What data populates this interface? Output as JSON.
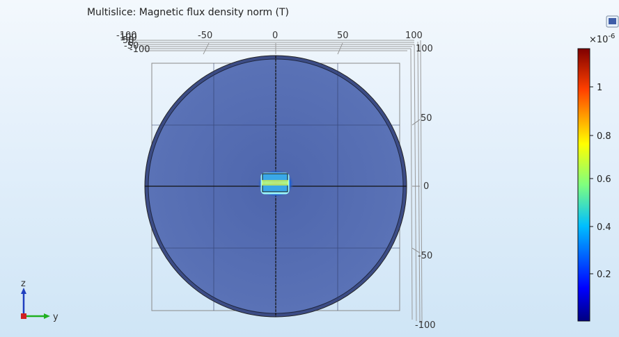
{
  "plot": {
    "title": "Multislice: Magnetic flux density norm (T)"
  },
  "x_axis_top": {
    "ticks": [
      "-100",
      "-50",
      "0",
      "50",
      "100"
    ]
  },
  "x_axis_top_overlap": {
    "labels": [
      "100",
      "50",
      "0",
      "-50",
      "-100"
    ]
  },
  "y_axis_right": {
    "ticks": [
      "100",
      "50",
      "0",
      "-50",
      "-100"
    ]
  },
  "colorbar": {
    "exponent_label": "×10",
    "exponent_power": "-6",
    "tick_labels": [
      "1",
      "0.8",
      "0.6",
      "0.4",
      "0.2"
    ]
  },
  "triad": {
    "z_label": "z",
    "y_label": "y",
    "z_color": "#1f3fbf",
    "y_color": "#20b020",
    "x_color": "#d02020"
  },
  "icons": {
    "view_icon": "window-icon"
  },
  "colors": {
    "disk_fill": "#4a63a8",
    "background": "#e6f1fb"
  }
}
